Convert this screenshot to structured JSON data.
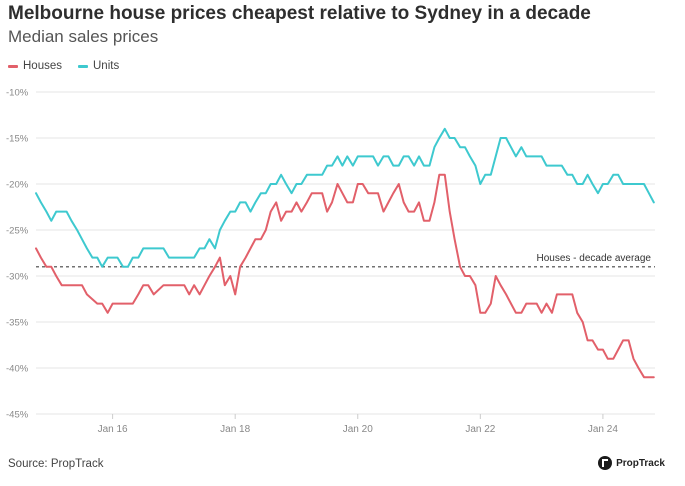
{
  "colors": {
    "houses": "#e2606a",
    "units": "#3ec9cf",
    "grid": "#e4e4e4",
    "reference": "#444444",
    "tick": "#888888"
  },
  "footer": {
    "source": "Source: PropTrack",
    "logo_text": "PropTrack",
    "logo_icon": "proptrack-logo-icon"
  },
  "chart_data": {
    "type": "line",
    "title": "Melbourne house prices cheapest relative to Sydney in a decade",
    "subtitle": "Median sales prices",
    "xlabel": "",
    "ylabel": "",
    "x_range": [
      2014.75,
      2024.85
    ],
    "ylim": [
      -45,
      -10
    ],
    "yticks": [
      -10,
      -15,
      -20,
      -25,
      -30,
      -35,
      -40,
      -45
    ],
    "ytick_labels": [
      "-10%",
      "-15%",
      "-20%",
      "-25%",
      "-30%",
      "-35%",
      "-40%",
      "-45%"
    ],
    "xticks": [
      2016,
      2018,
      2020,
      2022,
      2024
    ],
    "xtick_labels": [
      "Jan 16",
      "Jan 18",
      "Jan 20",
      "Jan 22",
      "Jan 24"
    ],
    "grid": "horizontal",
    "legend": "top-left",
    "reference_line": {
      "value": -29,
      "label": "Houses - decade average"
    },
    "series": [
      {
        "name": "Houses",
        "points": [
          [
            2014.75,
            -27
          ],
          [
            2014.83,
            -28
          ],
          [
            2014.92,
            -29
          ],
          [
            2015.0,
            -29
          ],
          [
            2015.08,
            -30
          ],
          [
            2015.17,
            -31
          ],
          [
            2015.33,
            -31
          ],
          [
            2015.5,
            -31
          ],
          [
            2015.58,
            -32
          ],
          [
            2015.75,
            -33
          ],
          [
            2015.83,
            -33
          ],
          [
            2015.92,
            -34
          ],
          [
            2016.0,
            -33
          ],
          [
            2016.08,
            -33
          ],
          [
            2016.25,
            -33
          ],
          [
            2016.33,
            -33
          ],
          [
            2016.42,
            -32
          ],
          [
            2016.5,
            -31
          ],
          [
            2016.58,
            -31
          ],
          [
            2016.67,
            -32
          ],
          [
            2016.83,
            -31
          ],
          [
            2017.0,
            -31
          ],
          [
            2017.17,
            -31
          ],
          [
            2017.25,
            -32
          ],
          [
            2017.33,
            -31
          ],
          [
            2017.42,
            -32
          ],
          [
            2017.5,
            -31
          ],
          [
            2017.58,
            -30
          ],
          [
            2017.67,
            -29
          ],
          [
            2017.75,
            -28
          ],
          [
            2017.83,
            -31
          ],
          [
            2017.92,
            -30
          ],
          [
            2018.0,
            -32
          ],
          [
            2018.08,
            -29
          ],
          [
            2018.17,
            -28
          ],
          [
            2018.25,
            -27
          ],
          [
            2018.33,
            -26
          ],
          [
            2018.42,
            -26
          ],
          [
            2018.5,
            -25
          ],
          [
            2018.58,
            -23
          ],
          [
            2018.67,
            -22
          ],
          [
            2018.75,
            -24
          ],
          [
            2018.83,
            -23
          ],
          [
            2018.92,
            -23
          ],
          [
            2019.0,
            -22
          ],
          [
            2019.08,
            -23
          ],
          [
            2019.17,
            -22
          ],
          [
            2019.25,
            -21
          ],
          [
            2019.33,
            -21
          ],
          [
            2019.42,
            -21
          ],
          [
            2019.5,
            -23
          ],
          [
            2019.58,
            -22
          ],
          [
            2019.67,
            -20
          ],
          [
            2019.75,
            -21
          ],
          [
            2019.83,
            -22
          ],
          [
            2019.92,
            -22
          ],
          [
            2020.0,
            -20
          ],
          [
            2020.08,
            -20
          ],
          [
            2020.17,
            -21
          ],
          [
            2020.25,
            -21
          ],
          [
            2020.33,
            -21
          ],
          [
            2020.42,
            -23
          ],
          [
            2020.5,
            -22
          ],
          [
            2020.58,
            -21
          ],
          [
            2020.67,
            -20
          ],
          [
            2020.75,
            -22
          ],
          [
            2020.83,
            -23
          ],
          [
            2020.92,
            -23
          ],
          [
            2021.0,
            -22
          ],
          [
            2021.08,
            -24
          ],
          [
            2021.17,
            -24
          ],
          [
            2021.25,
            -22
          ],
          [
            2021.33,
            -19
          ],
          [
            2021.42,
            -19
          ],
          [
            2021.5,
            -23
          ],
          [
            2021.58,
            -26
          ],
          [
            2021.67,
            -29
          ],
          [
            2021.75,
            -30
          ],
          [
            2021.83,
            -30
          ],
          [
            2021.92,
            -31
          ],
          [
            2022.0,
            -34
          ],
          [
            2022.08,
            -34
          ],
          [
            2022.17,
            -33
          ],
          [
            2022.25,
            -30
          ],
          [
            2022.33,
            -31
          ],
          [
            2022.42,
            -32
          ],
          [
            2022.5,
            -33
          ],
          [
            2022.58,
            -34
          ],
          [
            2022.67,
            -34
          ],
          [
            2022.75,
            -33
          ],
          [
            2022.83,
            -33
          ],
          [
            2022.92,
            -33
          ],
          [
            2023.0,
            -34
          ],
          [
            2023.08,
            -33
          ],
          [
            2023.17,
            -34
          ],
          [
            2023.25,
            -32
          ],
          [
            2023.33,
            -32
          ],
          [
            2023.42,
            -32
          ],
          [
            2023.5,
            -32
          ],
          [
            2023.58,
            -34
          ],
          [
            2023.67,
            -35
          ],
          [
            2023.75,
            -37
          ],
          [
            2023.83,
            -37
          ],
          [
            2023.92,
            -38
          ],
          [
            2024.0,
            -38
          ],
          [
            2024.08,
            -39
          ],
          [
            2024.17,
            -39
          ],
          [
            2024.25,
            -38
          ],
          [
            2024.33,
            -37
          ],
          [
            2024.42,
            -37
          ],
          [
            2024.5,
            -39
          ],
          [
            2024.58,
            -40
          ],
          [
            2024.67,
            -41
          ],
          [
            2024.75,
            -41
          ],
          [
            2024.83,
            -41
          ]
        ]
      },
      {
        "name": "Units",
        "points": [
          [
            2014.75,
            -21
          ],
          [
            2014.83,
            -22
          ],
          [
            2014.92,
            -23
          ],
          [
            2015.0,
            -24
          ],
          [
            2015.08,
            -23
          ],
          [
            2015.25,
            -23
          ],
          [
            2015.33,
            -24
          ],
          [
            2015.42,
            -25
          ],
          [
            2015.5,
            -26
          ],
          [
            2015.58,
            -27
          ],
          [
            2015.67,
            -28
          ],
          [
            2015.75,
            -28
          ],
          [
            2015.83,
            -29
          ],
          [
            2015.92,
            -28
          ],
          [
            2016.08,
            -28
          ],
          [
            2016.17,
            -29
          ],
          [
            2016.25,
            -29
          ],
          [
            2016.33,
            -28
          ],
          [
            2016.42,
            -28
          ],
          [
            2016.5,
            -27
          ],
          [
            2016.67,
            -27
          ],
          [
            2016.83,
            -27
          ],
          [
            2016.92,
            -28
          ],
          [
            2017.08,
            -28
          ],
          [
            2017.17,
            -28
          ],
          [
            2017.25,
            -28
          ],
          [
            2017.33,
            -28
          ],
          [
            2017.42,
            -27
          ],
          [
            2017.5,
            -27
          ],
          [
            2017.58,
            -26
          ],
          [
            2017.67,
            -27
          ],
          [
            2017.75,
            -25
          ],
          [
            2017.83,
            -24
          ],
          [
            2017.92,
            -23
          ],
          [
            2018.0,
            -23
          ],
          [
            2018.08,
            -22
          ],
          [
            2018.17,
            -22
          ],
          [
            2018.25,
            -23
          ],
          [
            2018.33,
            -22
          ],
          [
            2018.42,
            -21
          ],
          [
            2018.5,
            -21
          ],
          [
            2018.58,
            -20
          ],
          [
            2018.67,
            -20
          ],
          [
            2018.75,
            -19
          ],
          [
            2018.83,
            -20
          ],
          [
            2018.92,
            -21
          ],
          [
            2019.0,
            -20
          ],
          [
            2019.08,
            -20
          ],
          [
            2019.17,
            -19
          ],
          [
            2019.25,
            -19
          ],
          [
            2019.33,
            -19
          ],
          [
            2019.42,
            -19
          ],
          [
            2019.5,
            -18
          ],
          [
            2019.58,
            -18
          ],
          [
            2019.67,
            -17
          ],
          [
            2019.75,
            -18
          ],
          [
            2019.83,
            -17
          ],
          [
            2019.92,
            -18
          ],
          [
            2020.0,
            -17
          ],
          [
            2020.08,
            -17
          ],
          [
            2020.17,
            -17
          ],
          [
            2020.25,
            -17
          ],
          [
            2020.33,
            -18
          ],
          [
            2020.42,
            -17
          ],
          [
            2020.5,
            -17
          ],
          [
            2020.58,
            -18
          ],
          [
            2020.67,
            -18
          ],
          [
            2020.75,
            -17
          ],
          [
            2020.83,
            -17
          ],
          [
            2020.92,
            -18
          ],
          [
            2021.0,
            -17
          ],
          [
            2021.08,
            -18
          ],
          [
            2021.17,
            -18
          ],
          [
            2021.25,
            -16
          ],
          [
            2021.33,
            -15
          ],
          [
            2021.42,
            -14
          ],
          [
            2021.5,
            -15
          ],
          [
            2021.58,
            -15
          ],
          [
            2021.67,
            -16
          ],
          [
            2021.75,
            -16
          ],
          [
            2021.83,
            -17
          ],
          [
            2021.92,
            -18
          ],
          [
            2022.0,
            -20
          ],
          [
            2022.08,
            -19
          ],
          [
            2022.17,
            -19
          ],
          [
            2022.25,
            -17
          ],
          [
            2022.33,
            -15
          ],
          [
            2022.42,
            -15
          ],
          [
            2022.5,
            -16
          ],
          [
            2022.58,
            -17
          ],
          [
            2022.67,
            -16
          ],
          [
            2022.75,
            -17
          ],
          [
            2022.83,
            -17
          ],
          [
            2022.92,
            -17
          ],
          [
            2023.0,
            -17
          ],
          [
            2023.08,
            -18
          ],
          [
            2023.17,
            -18
          ],
          [
            2023.25,
            -18
          ],
          [
            2023.33,
            -18
          ],
          [
            2023.42,
            -19
          ],
          [
            2023.5,
            -19
          ],
          [
            2023.58,
            -20
          ],
          [
            2023.67,
            -20
          ],
          [
            2023.75,
            -19
          ],
          [
            2023.83,
            -20
          ],
          [
            2023.92,
            -21
          ],
          [
            2024.0,
            -20
          ],
          [
            2024.08,
            -20
          ],
          [
            2024.17,
            -19
          ],
          [
            2024.25,
            -19
          ],
          [
            2024.33,
            -20
          ],
          [
            2024.42,
            -20
          ],
          [
            2024.5,
            -20
          ],
          [
            2024.58,
            -20
          ],
          [
            2024.67,
            -20
          ],
          [
            2024.75,
            -21
          ],
          [
            2024.83,
            -22
          ]
        ]
      }
    ]
  }
}
